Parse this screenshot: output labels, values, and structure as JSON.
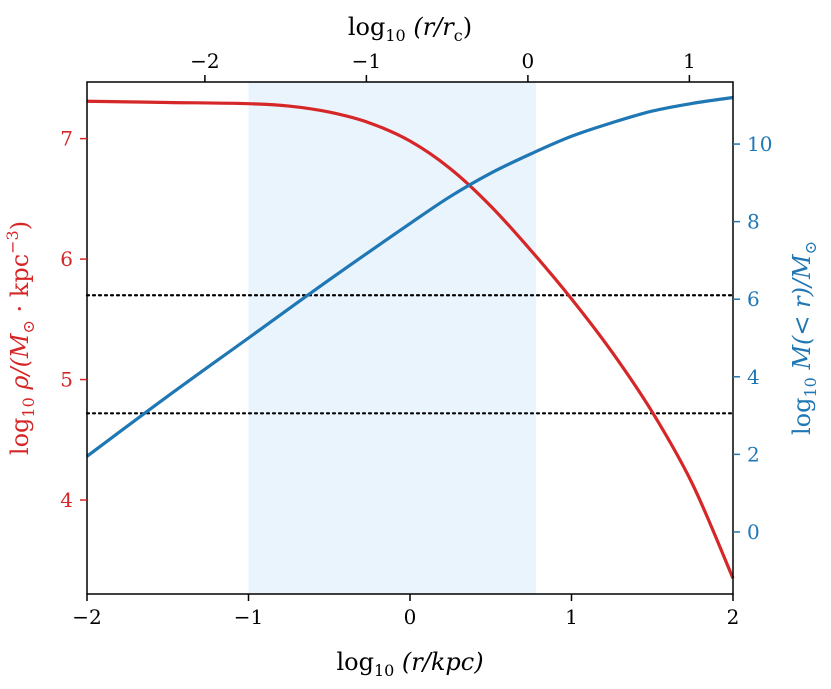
{
  "chart_data": {
    "type": "line",
    "colors": {
      "left_axis": "#d62728",
      "right_axis": "#1f77b4",
      "shade": "#eaf4fd",
      "reference_lines": "#000000"
    },
    "bottom_axis": {
      "label_prefix": "log",
      "label_sub": "10",
      "label_body": " (r/kpc)",
      "xlim": [
        -2,
        2
      ],
      "ticks": [
        -2,
        -1,
        0,
        1,
        2
      ],
      "tick_labels": [
        "−2",
        "−1",
        "0",
        "1",
        "2"
      ]
    },
    "top_axis": {
      "label_prefix": "log",
      "label_sub": "10",
      "label_body": " (r/r",
      "label_body_sub": "c",
      "label_close": ")",
      "xlim": [
        -2.73,
        1.27
      ],
      "ticks": [
        -2,
        -1,
        0,
        1
      ],
      "tick_labels": [
        "−2",
        "−1",
        "0",
        "1"
      ]
    },
    "left_axis": {
      "label_prefix": "log",
      "label_sub": "10",
      "label_body": " ρ/(M",
      "label_body_sub": "⊙",
      "label_mid": " · kpc",
      "label_sup": "−3",
      "label_close": ")",
      "ylim": [
        3.22,
        7.47
      ],
      "ticks": [
        4,
        5,
        6,
        7
      ],
      "tick_labels": [
        "4",
        "5",
        "6",
        "7"
      ]
    },
    "right_axis": {
      "label_prefix": "log",
      "label_sub": "10",
      "label_body": " M(< r)/M",
      "label_body_sub": "⊙",
      "ylim": [
        -1.6,
        11.6
      ],
      "ticks": [
        0,
        2,
        4,
        6,
        8,
        10
      ],
      "tick_labels": [
        "0",
        "2",
        "4",
        "6",
        "8",
        "10"
      ]
    },
    "shaded_region": {
      "x_range": [
        -1.0,
        0.78
      ]
    },
    "horizontal_lines": [
      {
        "axis": "left",
        "y": 5.7,
        "style": "dotted"
      },
      {
        "axis": "left",
        "y": 4.72,
        "style": "dotted"
      }
    ],
    "series": [
      {
        "axis": "left",
        "x": [
          -2.0,
          -1.5,
          -1.0,
          -0.75,
          -0.5,
          -0.25,
          0.0,
          0.25,
          0.5,
          0.75,
          1.0,
          1.25,
          1.5,
          1.75,
          2.0
        ],
        "y": [
          7.31,
          7.3,
          7.29,
          7.27,
          7.22,
          7.13,
          6.98,
          6.75,
          6.44,
          6.07,
          5.67,
          5.23,
          4.73,
          4.13,
          3.35
        ]
      },
      {
        "axis": "right",
        "x": [
          -2.0,
          -1.5,
          -1.0,
          -0.5,
          0.0,
          0.25,
          0.5,
          0.75,
          1.0,
          1.25,
          1.5,
          1.75,
          2.0
        ],
        "y": [
          1.95,
          3.5,
          5.0,
          6.5,
          7.95,
          8.65,
          9.25,
          9.75,
          10.2,
          10.55,
          10.85,
          11.05,
          11.2
        ]
      }
    ]
  }
}
